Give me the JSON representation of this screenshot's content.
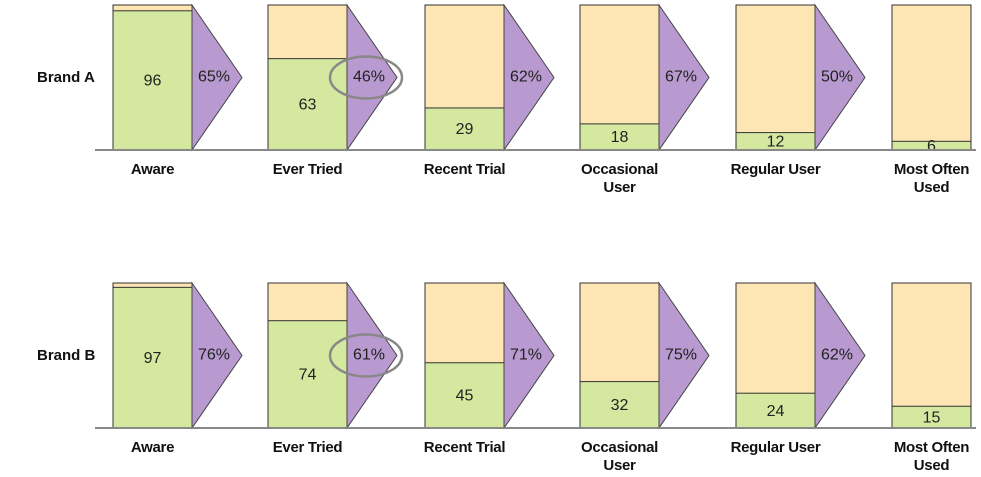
{
  "chart_data": [
    {
      "type": "funnel",
      "title": "Brand A",
      "categories": [
        "Aware",
        "Ever Tried",
        "Recent Trial",
        "Occasional User",
        "Regular User",
        "Most Often Used"
      ],
      "values": [
        96,
        63,
        29,
        18,
        12,
        6
      ],
      "conversions": [
        65,
        46,
        62,
        67,
        50
      ],
      "conversion_labels": [
        "65%",
        "46%",
        "62%",
        "67%",
        "50%"
      ],
      "highlight": 1,
      "ylim": [
        0,
        100
      ],
      "color": "#d5e8a0",
      "background_color": "#fde6b3",
      "arrow_color": "#b99ad0"
    },
    {
      "type": "funnel",
      "title": "Brand B",
      "categories": [
        "Aware",
        "Ever Tried",
        "Recent Trial",
        "Occasional User",
        "Regular User",
        "Most Often Used"
      ],
      "values": [
        97,
        74,
        45,
        32,
        24,
        15
      ],
      "conversions": [
        76,
        61,
        71,
        75,
        62
      ],
      "conversion_labels": [
        "76%",
        "61%",
        "71%",
        "75%",
        "62%"
      ],
      "highlight": 1,
      "ylim": [
        0,
        100
      ],
      "color": "#d5e8a0",
      "background_color": "#fde6b3",
      "arrow_color": "#b99ad0"
    }
  ]
}
